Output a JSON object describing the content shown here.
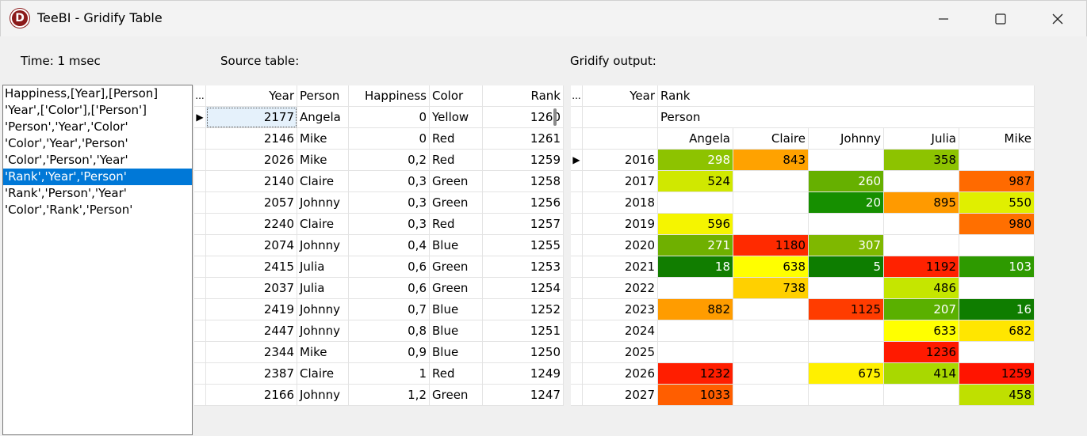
{
  "window": {
    "title": "TeeBI - Gridify Table",
    "icon_letter": "D"
  },
  "labels": {
    "time": "Time: 1 msec",
    "source": "Source table:",
    "output": "Gridify output:"
  },
  "list": {
    "items": [
      "Happiness,[Year],[Person]",
      "'Year',['Color'],['Person']",
      "'Person','Year','Color'",
      "'Color','Year','Person'",
      "'Color','Person','Year'",
      "'Rank','Year','Person'",
      "'Rank','Person','Year'",
      "'Color','Rank','Person'"
    ],
    "selected_index": 5
  },
  "source": {
    "ellipsis": "...",
    "columns": [
      "Year",
      "Person",
      "Happiness",
      "Color",
      "Rank"
    ],
    "rows": [
      [
        "2177",
        "Angela",
        "0",
        "Yellow",
        "1260"
      ],
      [
        "2146",
        "Mike",
        "0",
        "Red",
        "1261"
      ],
      [
        "2026",
        "Mike",
        "0,2",
        "Red",
        "1259"
      ],
      [
        "2140",
        "Claire",
        "0,3",
        "Green",
        "1258"
      ],
      [
        "2057",
        "Johnny",
        "0,3",
        "Green",
        "1256"
      ],
      [
        "2240",
        "Claire",
        "0,3",
        "Red",
        "1257"
      ],
      [
        "2074",
        "Johnny",
        "0,4",
        "Blue",
        "1255"
      ],
      [
        "2415",
        "Julia",
        "0,6",
        "Green",
        "1253"
      ],
      [
        "2037",
        "Julia",
        "0,6",
        "Green",
        "1254"
      ],
      [
        "2419",
        "Johnny",
        "0,7",
        "Blue",
        "1252"
      ],
      [
        "2447",
        "Johnny",
        "0,8",
        "Blue",
        "1251"
      ],
      [
        "2344",
        "Mike",
        "0,9",
        "Blue",
        "1250"
      ],
      [
        "2387",
        "Claire",
        "1",
        "Red",
        "1249"
      ],
      [
        "2166",
        "Johnny",
        "1,2",
        "Green",
        "1247"
      ]
    ]
  },
  "output": {
    "ellipsis": "...",
    "year_header": "Year",
    "rank_header": "Rank",
    "person_header": "Person",
    "persons": [
      "Angela",
      "Claire",
      "Johnny",
      "Julia",
      "Mike"
    ],
    "rows": [
      {
        "year": "2016",
        "cells": [
          [
            "298",
            "#8dc300",
            "#fff"
          ],
          [
            "843",
            "#ffa200",
            "#000"
          ],
          [
            "",
            "#fff",
            "#000"
          ],
          [
            "358",
            "#8dc300",
            "#000"
          ],
          [
            "",
            "#fff",
            "#000"
          ]
        ]
      },
      {
        "year": "2017",
        "cells": [
          [
            "524",
            "#d0e800",
            "#000"
          ],
          [
            "",
            "#fff",
            "#000"
          ],
          [
            "260",
            "#66b000",
            "#fff"
          ],
          [
            "",
            "#fff",
            "#000"
          ],
          [
            "987",
            "#ff6a00",
            "#000"
          ]
        ]
      },
      {
        "year": "2018",
        "cells": [
          [
            "",
            "#fff",
            "#000"
          ],
          [
            "",
            "#fff",
            "#000"
          ],
          [
            "20",
            "#168f00",
            "#fff"
          ],
          [
            "895",
            "#ff9a00",
            "#000"
          ],
          [
            "550",
            "#e0ef00",
            "#000"
          ]
        ]
      },
      {
        "year": "2019",
        "cells": [
          [
            "596",
            "#f5f500",
            "#000"
          ],
          [
            "",
            "#fff",
            "#000"
          ],
          [
            "",
            "#fff",
            "#000"
          ],
          [
            "",
            "#fff",
            "#000"
          ],
          [
            "980",
            "#ff6f00",
            "#000"
          ]
        ]
      },
      {
        "year": "2020",
        "cells": [
          [
            "271",
            "#6fb000",
            "#fff"
          ],
          [
            "1180",
            "#ff2a00",
            "#000"
          ],
          [
            "307",
            "#7fb800",
            "#fff"
          ],
          [
            "",
            "#fff",
            "#000"
          ],
          [
            "",
            "#fff",
            "#000"
          ]
        ]
      },
      {
        "year": "2021",
        "cells": [
          [
            "18",
            "#117d00",
            "#fff"
          ],
          [
            "638",
            "#ffff00",
            "#000"
          ],
          [
            "5",
            "#0d7d00",
            "#fff"
          ],
          [
            "1192",
            "#ff2200",
            "#000"
          ],
          [
            "103",
            "#2e9a00",
            "#fff"
          ]
        ]
      },
      {
        "year": "2022",
        "cells": [
          [
            "",
            "#fff",
            "#000"
          ],
          [
            "738",
            "#ffd000",
            "#000"
          ],
          [
            "",
            "#fff",
            "#000"
          ],
          [
            "486",
            "#c5e600",
            "#000"
          ],
          [
            "",
            "#fff",
            "#000"
          ]
        ]
      },
      {
        "year": "2023",
        "cells": [
          [
            "882",
            "#ff9c00",
            "#000"
          ],
          [
            "",
            "#fff",
            "#000"
          ],
          [
            "1125",
            "#ff3c00",
            "#000"
          ],
          [
            "207",
            "#5ab000",
            "#fff"
          ],
          [
            "16",
            "#0f7d00",
            "#fff"
          ]
        ]
      },
      {
        "year": "2024",
        "cells": [
          [
            "",
            "#fff",
            "#000"
          ],
          [
            "",
            "#fff",
            "#000"
          ],
          [
            "",
            "#fff",
            "#000"
          ],
          [
            "633",
            "#ffff00",
            "#000"
          ],
          [
            "682",
            "#ffe600",
            "#000"
          ]
        ]
      },
      {
        "year": "2025",
        "cells": [
          [
            "",
            "#fff",
            "#000"
          ],
          [
            "",
            "#fff",
            "#000"
          ],
          [
            "",
            "#fff",
            "#000"
          ],
          [
            "1236",
            "#ff1a00",
            "#000"
          ],
          [
            "",
            "#fff",
            "#000"
          ]
        ]
      },
      {
        "year": "2026",
        "cells": [
          [
            "1232",
            "#ff1e00",
            "#000"
          ],
          [
            "",
            "#fff",
            "#000"
          ],
          [
            "675",
            "#fff000",
            "#000"
          ],
          [
            "414",
            "#a9d800",
            "#000"
          ],
          [
            "1259",
            "#ff1400",
            "#000"
          ]
        ]
      },
      {
        "year": "2027",
        "cells": [
          [
            "1033",
            "#ff5e00",
            "#000"
          ],
          [
            "",
            "#fff",
            "#000"
          ],
          [
            "",
            "#fff",
            "#000"
          ],
          [
            "",
            "#fff",
            "#000"
          ],
          [
            "458",
            "#bfe000",
            "#000"
          ]
        ]
      }
    ]
  }
}
